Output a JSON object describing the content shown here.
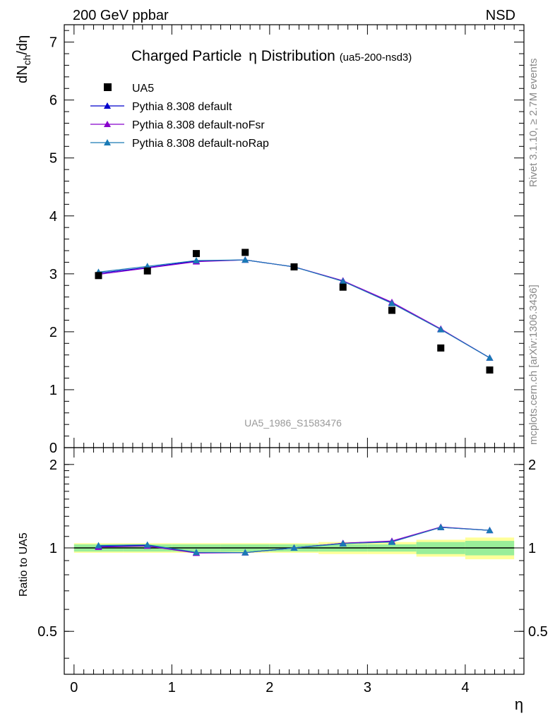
{
  "header": {
    "left": "200 GeV ppbar",
    "right": "NSD"
  },
  "side_labels": {
    "rivet": "Rivet 3.1.10, ≥ 2.7M events",
    "mcplots": "mcplots.cern.ch [arXiv:1306.3436]"
  },
  "chart_data": {
    "type": "scatter",
    "title_main": "Charged Particle",
    "title_eta": "η",
    "title_dist": " Distribution",
    "title_sub": "(ua5-200-nsd3)",
    "analysis_label": "UA5_1986_S1583476",
    "ylabel_main": "dN",
    "ylabel_sub": "ch",
    "ylabel_tail": "/dη",
    "ylabel_ratio": "Ratio to UA5",
    "xlabel": "η",
    "xlim": [
      -0.1,
      4.6
    ],
    "ylim_main": [
      0,
      7.3
    ],
    "ylim_ratio": [
      0.35,
      2.3
    ],
    "x_ticks": [
      "0",
      "1",
      "2",
      "3",
      "4"
    ],
    "y_ticks_main": [
      "0",
      "1",
      "2",
      "3",
      "4",
      "5",
      "6",
      "7"
    ],
    "y_ticks_ratio": [
      "0.5",
      "1",
      "2"
    ],
    "x": [
      0.25,
      0.75,
      1.25,
      1.75,
      2.25,
      2.75,
      3.25,
      3.75,
      4.25
    ],
    "data": {
      "name": "UA5",
      "values": [
        2.97,
        3.05,
        3.35,
        3.37,
        3.12,
        2.77,
        2.37,
        1.72,
        1.34
      ],
      "band_inner": [
        0.03,
        0.03,
        0.03,
        0.03,
        0.03,
        0.03,
        0.03,
        0.05,
        0.06
      ],
      "band_outer": [
        0.04,
        0.04,
        0.04,
        0.04,
        0.04,
        0.05,
        0.05,
        0.07,
        0.09
      ]
    },
    "series": [
      {
        "name": "Pythia 8.308 default",
        "color": "#0000cc",
        "values": [
          3.01,
          3.11,
          3.22,
          3.24,
          3.12,
          2.88,
          2.5,
          2.04,
          1.55
        ],
        "ratio": [
          1.013,
          1.02,
          0.962,
          0.962,
          1.0,
          1.04,
          1.055,
          1.186,
          1.157
        ]
      },
      {
        "name": "Pythia 8.308 default-noFsr",
        "color": "#8800cc",
        "values": [
          2.99,
          3.1,
          3.21,
          3.24,
          3.12,
          2.88,
          2.51,
          2.05,
          1.55
        ],
        "ratio": [
          1.007,
          1.016,
          0.958,
          0.961,
          1.0,
          1.04,
          1.059,
          1.19,
          1.157
        ]
      },
      {
        "name": "Pythia 8.308 default-noRap",
        "color": "#1a7ab5",
        "values": [
          3.03,
          3.13,
          3.23,
          3.24,
          3.12,
          2.87,
          2.49,
          2.04,
          1.55
        ],
        "ratio": [
          1.02,
          1.026,
          0.964,
          0.962,
          1.0,
          1.036,
          1.05,
          1.186,
          1.157
        ]
      }
    ]
  }
}
